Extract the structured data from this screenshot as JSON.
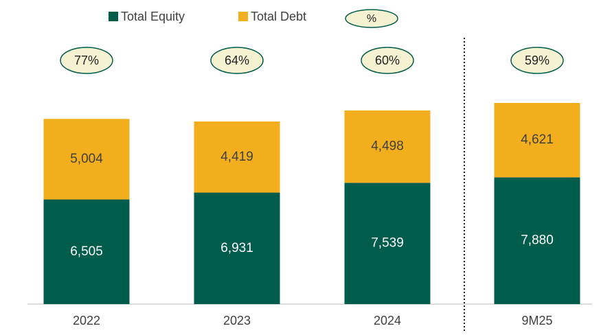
{
  "chart_data": {
    "type": "stacked_bar",
    "categories": [
      "2022",
      "2023",
      "2024",
      "9M25"
    ],
    "series": [
      {
        "name": "Total Equity",
        "color": "#005c4b",
        "values": [
          6505,
          6931,
          7539,
          7880
        ],
        "value_labels": [
          "6,505",
          "6,931",
          "7,539",
          "7,880"
        ],
        "label_color": "#ffffff"
      },
      {
        "name": "Total Debt",
        "color": "#f2ae1c",
        "values": [
          5004,
          4419,
          4498,
          4621
        ],
        "value_labels": [
          "5,004",
          "4,419",
          "4,498",
          "4,621"
        ],
        "label_color": "#404040"
      }
    ],
    "ratio": {
      "name": "%",
      "values": [
        77,
        64,
        60,
        59
      ],
      "value_labels": [
        "77%",
        "64%",
        "60%",
        "59%"
      ],
      "fill": "#f5f2d2",
      "stroke": "#005c4b"
    }
  }
}
